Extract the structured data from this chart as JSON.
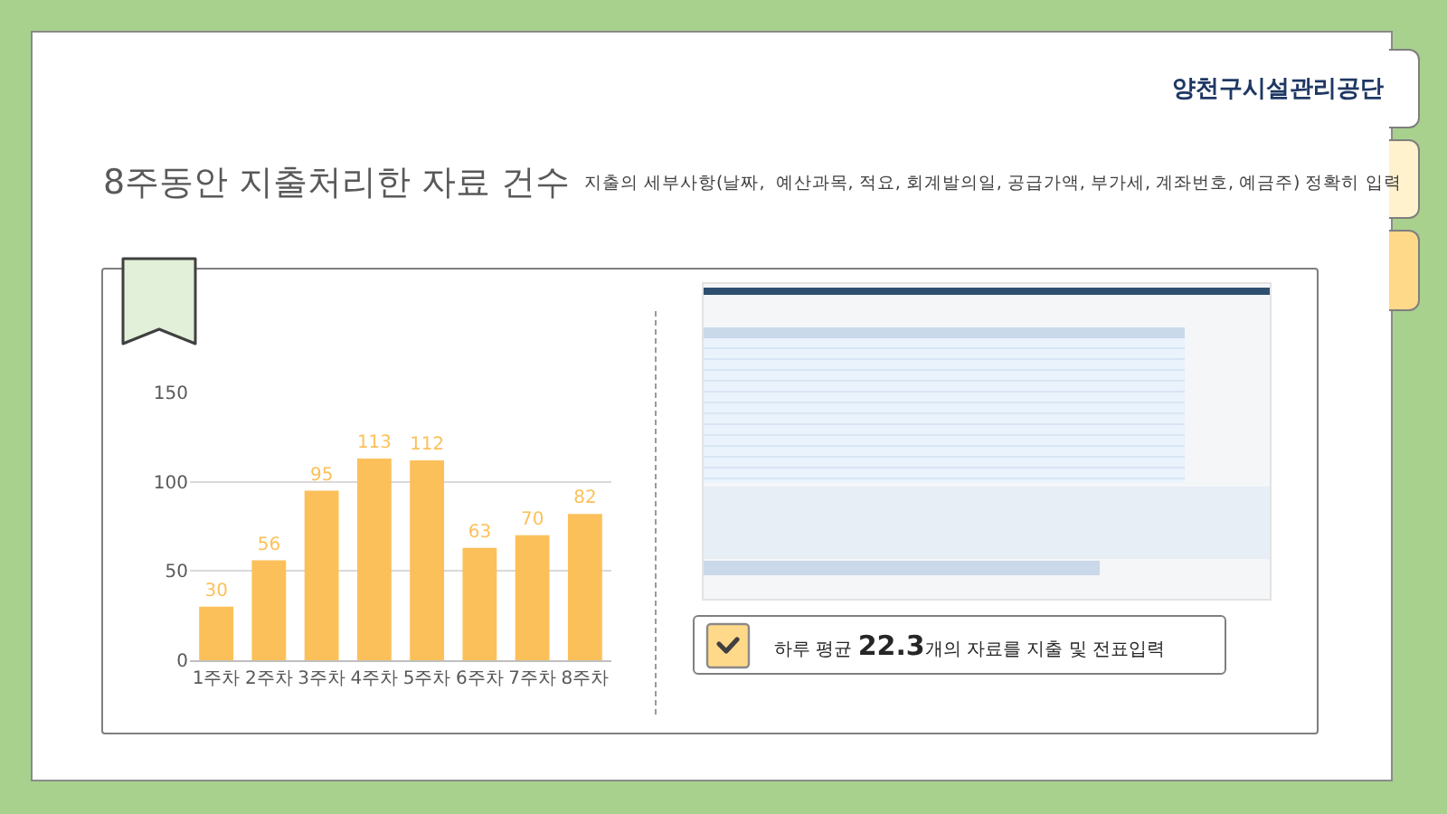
{
  "chart_data": {
    "type": "bar",
    "title": "8주동안 지출처리한 자료 건수",
    "subtitle": "지출의 세부사항(날짜,  예산과목, 적요, 회계발의일, 공급가액, 부가세, 계좌번호, 예금주) 정확히 입력",
    "categories": [
      "1주차",
      "2주차",
      "3주차",
      "4주차",
      "5주차",
      "6주차",
      "7주차",
      "8주차"
    ],
    "values": [
      30,
      56,
      95,
      113,
      112,
      63,
      70,
      82
    ],
    "color": "#fcc05a",
    "ylim": [
      0,
      150
    ],
    "yticks": [
      0,
      50,
      100,
      150
    ],
    "grid": "y",
    "data_labels": true,
    "annotations": [
      "양천구시설관리공단",
      "하루 평균 22.3개의 자료를 지출 및 전표입력"
    ]
  }
}
